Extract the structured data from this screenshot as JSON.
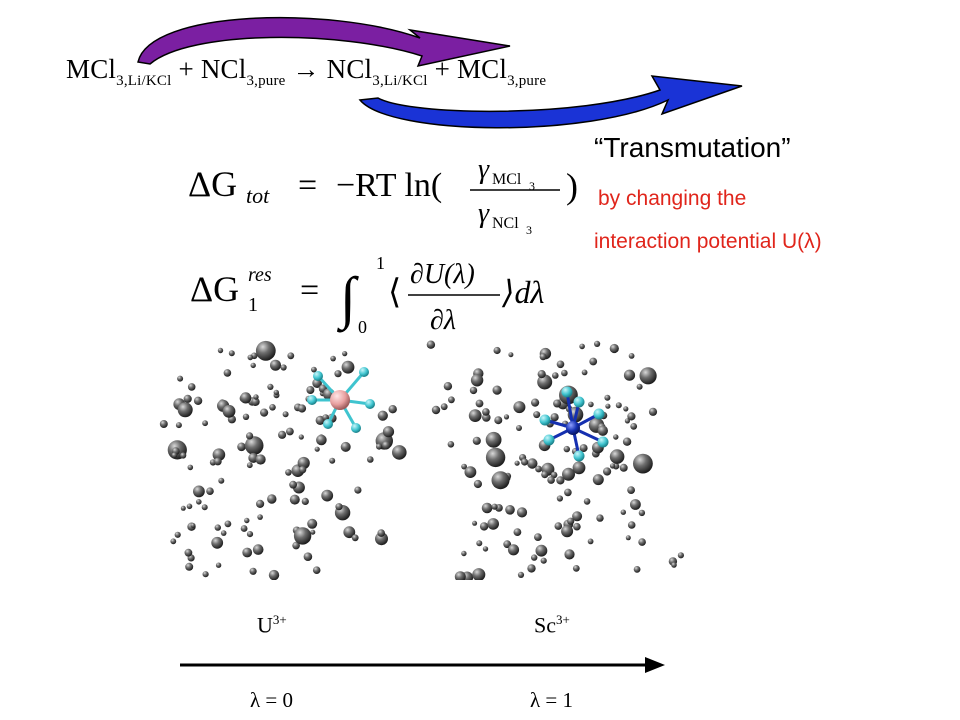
{
  "reaction": {
    "t1": "MCl",
    "s1": "3,Li/KCl",
    "t2": "+ NCl",
    "s2": "3,pure",
    "t3": "→ NCl",
    "s3": "3,Li/KCl",
    "t4": "+ MCl",
    "s4": "3,pure"
  },
  "title": "“Transmutation”",
  "note": {
    "line1": "by changing the",
    "line2": "interaction potential U(λ)"
  },
  "equation1": {
    "lhs": "ΔG",
    "lhs_sub": "tot",
    "eq": "=",
    "rhs": "−RT ln(",
    "num": "γ",
    "num_sub": "MCl",
    "num_subsub": "3",
    "den": "γ",
    "den_sub": "NCl",
    "den_subsub": "3",
    "close": ")"
  },
  "equation2": {
    "lhs": "ΔG",
    "lhs_sup": "res",
    "lhs_sub": "1",
    "eq": "=",
    "int": "∫",
    "upper": "1",
    "lower": "0",
    "open": "⟨",
    "num": "∂U(λ)",
    "den": "∂λ",
    "close": "⟩dλ"
  },
  "labels": {
    "left_ion": "U",
    "left_ion_sup": "3+",
    "right_ion": "Sc",
    "right_ion_sup": "3+",
    "lambda_left": "λ = 0",
    "lambda_right": "λ = 1"
  },
  "colors": {
    "arrow_top": "#7b1fa2",
    "arrow_bottom": "#1a33d6",
    "note": "#e0251b",
    "sphere": "#555555",
    "ligand": "#3fc4cf",
    "center_left": "#e8a0a0",
    "center_right": "#1530b0"
  }
}
